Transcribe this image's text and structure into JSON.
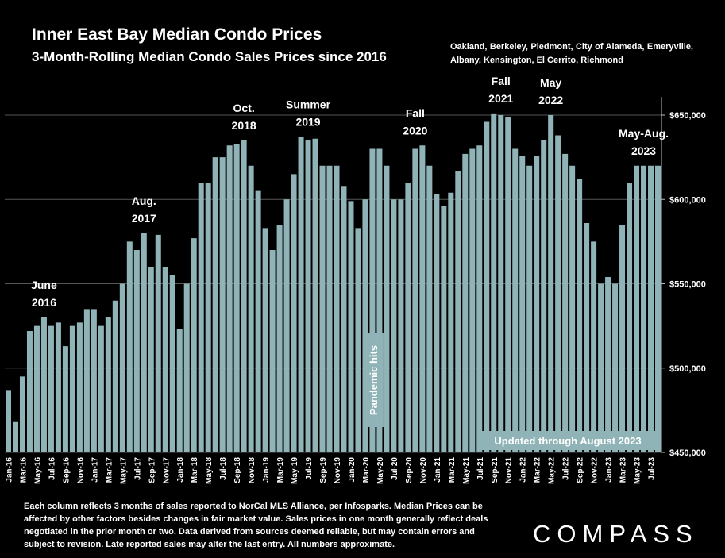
{
  "header": {
    "title": "Inner East Bay Median Condo Prices",
    "subtitle": "3-Month-Rolling Median Condo Sales Prices since 2016",
    "region": "Oakland, Berkeley, Piedmont, City of Alameda, Emeryville, Albany, Kensington, El Cerrito, Richmond"
  },
  "footer": {
    "note": "Each column reflects 3 months of sales reported to NorCal MLS Alliance, per Infosparks. Median Prices can be affected by other factors besides changes in fair market value. Sales prices in one month generally reflect deals negotiated in the prior month or two. Data derived from sources deemed reliable, but may contain errors and subject to revision. Late reported sales may alter the last entry. All numbers approximate.",
    "logo": "COMPASS"
  },
  "colors": {
    "bar": "#8fb3b6",
    "background": "#000000",
    "text": "#ffffff",
    "grid": "#555555"
  },
  "chart_data": {
    "type": "bar",
    "title": "Inner East Bay Median Condo Prices",
    "subtitle": "3-Month-Rolling Median Condo Sales Prices since 2016",
    "ylim": [
      450000,
      650000
    ],
    "y_ticks": [
      "$450,000",
      "$500,000",
      "$550,000",
      "$600,000",
      "$650,000"
    ],
    "y_tick_values": [
      450000,
      500000,
      550000,
      600000,
      650000
    ],
    "grid": true,
    "x_tick_labels": [
      "Jan-16",
      "Mar-16",
      "May-16",
      "Jul-16",
      "Sep-16",
      "Nov-16",
      "Jan-17",
      "Mar-17",
      "May-17",
      "Jul-17",
      "Sep-17",
      "Nov-17",
      "Jan-18",
      "Mar-18",
      "May-18",
      "Jul-18",
      "Sep-18",
      "Nov-18",
      "Jan-19",
      "Mar-19",
      "May-19",
      "Jul-19",
      "Sep-19",
      "Nov-19",
      "Jan-20",
      "Mar-20",
      "May-20",
      "Jul-20",
      "Sep-20",
      "Nov-20",
      "Jan-21",
      "Mar-21",
      "May-21",
      "Jul-21",
      "Sep-21",
      "Nov-21",
      "Jan-22",
      "Mar-22",
      "May-22",
      "Jul-22",
      "Sep-22",
      "Nov-22",
      "Jan-23",
      "Mar-23",
      "May-23",
      "Jul-23"
    ],
    "categories": [
      "Jan-16",
      "Feb-16",
      "Mar-16",
      "Apr-16",
      "May-16",
      "Jun-16",
      "Jul-16",
      "Aug-16",
      "Sep-16",
      "Oct-16",
      "Nov-16",
      "Dec-16",
      "Jan-17",
      "Feb-17",
      "Mar-17",
      "Apr-17",
      "May-17",
      "Jun-17",
      "Jul-17",
      "Aug-17",
      "Sep-17",
      "Oct-17",
      "Nov-17",
      "Dec-17",
      "Jan-18",
      "Feb-18",
      "Mar-18",
      "Apr-18",
      "May-18",
      "Jun-18",
      "Jul-18",
      "Aug-18",
      "Sep-18",
      "Oct-18",
      "Nov-18",
      "Dec-18",
      "Jan-19",
      "Feb-19",
      "Mar-19",
      "Apr-19",
      "May-19",
      "Jun-19",
      "Jul-19",
      "Aug-19",
      "Sep-19",
      "Oct-19",
      "Nov-19",
      "Dec-19",
      "Jan-20",
      "Feb-20",
      "Mar-20",
      "Apr-20",
      "May-20",
      "Jun-20",
      "Jul-20",
      "Aug-20",
      "Sep-20",
      "Oct-20",
      "Nov-20",
      "Dec-20",
      "Jan-21",
      "Feb-21",
      "Mar-21",
      "Apr-21",
      "May-21",
      "Jun-21",
      "Jul-21",
      "Aug-21",
      "Sep-21",
      "Oct-21",
      "Nov-21",
      "Dec-21",
      "Jan-22",
      "Feb-22",
      "Mar-22",
      "Apr-22",
      "May-22",
      "Jun-22",
      "Jul-22",
      "Aug-22",
      "Sep-22",
      "Oct-22",
      "Nov-22",
      "Dec-22",
      "Jan-23",
      "Feb-23",
      "Mar-23",
      "Apr-23",
      "May-23",
      "Jun-23",
      "Jul-23",
      "Aug-23"
    ],
    "values": [
      487000,
      468000,
      495000,
      522000,
      525000,
      530000,
      525000,
      527000,
      513000,
      525000,
      527000,
      535000,
      535000,
      525000,
      530000,
      540000,
      550000,
      575000,
      570000,
      580000,
      560000,
      579000,
      560000,
      555000,
      523000,
      550000,
      577000,
      610000,
      610000,
      625000,
      625000,
      632000,
      633000,
      635000,
      620000,
      605000,
      583000,
      570000,
      585000,
      600000,
      615000,
      637000,
      635000,
      636000,
      620000,
      620000,
      620000,
      608000,
      599000,
      583000,
      600000,
      630000,
      630000,
      620000,
      600000,
      600000,
      610000,
      630000,
      632000,
      620000,
      603000,
      596000,
      604000,
      617000,
      627000,
      630000,
      632000,
      646000,
      651000,
      650000,
      649000,
      630000,
      626000,
      620000,
      626000,
      635000,
      650000,
      638000,
      627000,
      620000,
      612000,
      586000,
      575000,
      550000,
      554000,
      550000,
      585000,
      610000,
      620000,
      620000,
      620000,
      620000
    ],
    "annotations": [
      {
        "text": [
          "June",
          "2016"
        ],
        "at": "Jun-16",
        "value": 530000
      },
      {
        "text": [
          "Aug.",
          "2017"
        ],
        "at": "Aug-17",
        "value": 580000
      },
      {
        "text": [
          "Oct.",
          "2018"
        ],
        "at": "Oct-18",
        "value": 635000
      },
      {
        "text": [
          "Summer",
          "2019"
        ],
        "at": "Jul-19",
        "value": 637000
      },
      {
        "text": [
          "Fall",
          "2020"
        ],
        "at": "Oct-20",
        "value": 632000
      },
      {
        "text": [
          "Fall",
          "2021"
        ],
        "at": "Oct-21",
        "value": 651000
      },
      {
        "text": [
          "May",
          "2022"
        ],
        "at": "May-22",
        "value": 650000
      },
      {
        "text": [
          "May-Aug.",
          "2023"
        ],
        "at": "Jun-23",
        "value": 620000
      }
    ],
    "pandemic_label": "Pandemic hits",
    "updated_label": "Updated through August 2023"
  }
}
